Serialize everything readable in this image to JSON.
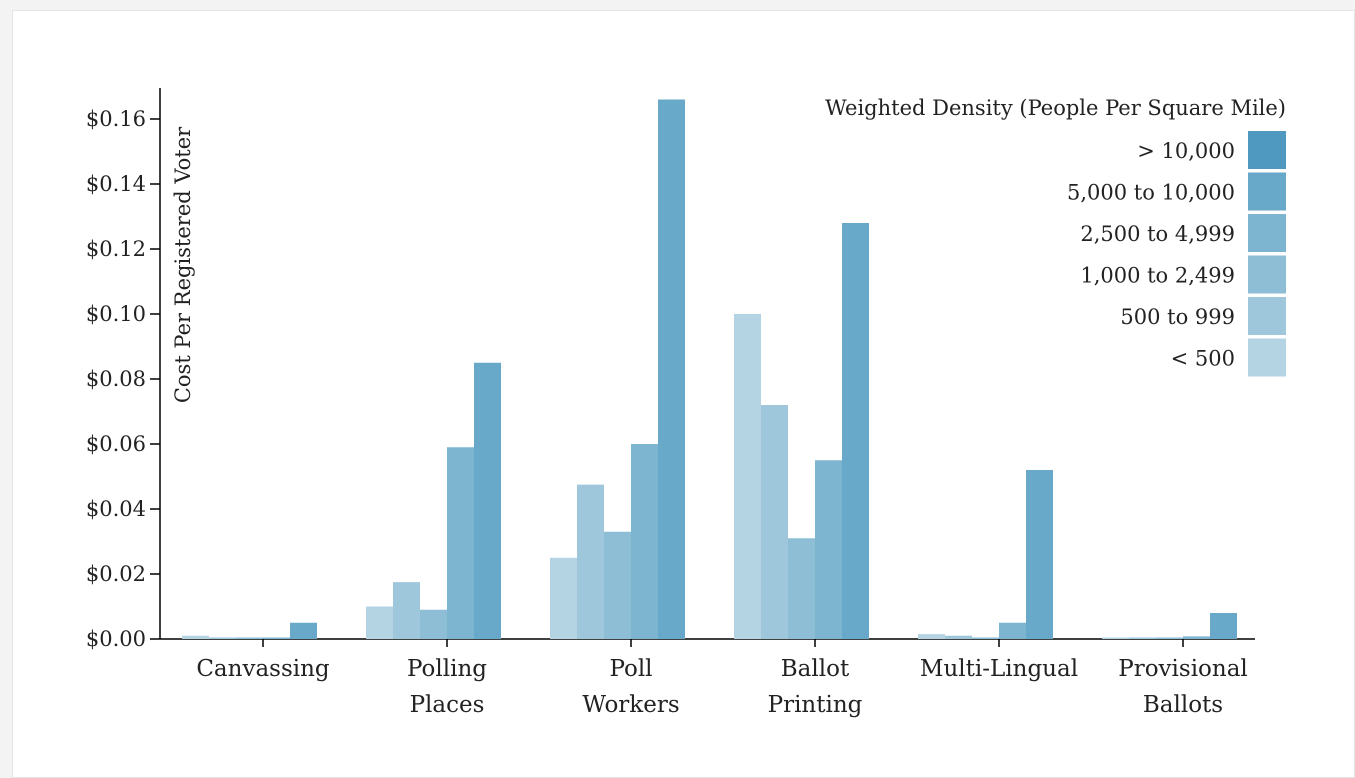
{
  "chart_data": {
    "type": "bar",
    "title": "",
    "xlabel": "",
    "ylabel": "Cost Per Registered Voter",
    "ylim": [
      0,
      0.165
    ],
    "yticks": [
      0,
      0.02,
      0.04,
      0.06,
      0.08,
      0.1,
      0.12,
      0.14,
      0.16
    ],
    "ytick_labels": [
      "$0.00",
      "$0.02",
      "$0.04",
      "$0.06",
      "$0.08",
      "$0.10",
      "$0.12",
      "$0.14",
      "$0.16"
    ],
    "grid": false,
    "categories": [
      [
        "Canvassing"
      ],
      [
        "Polling",
        "Places"
      ],
      [
        "Poll",
        "Workers"
      ],
      [
        "Ballot",
        "Printing"
      ],
      [
        "Multi-Lingual"
      ],
      [
        "Provisional",
        "Ballots"
      ]
    ],
    "series": [
      {
        "name": "< 500",
        "color": "#b4d3e3",
        "values": [
          0.001,
          0.01,
          0.025,
          0.1,
          0.0015,
          0.0003
        ]
      },
      {
        "name": "500 to 999",
        "color": "#9ec7dc",
        "values": [
          0.0002,
          0.0175,
          0.0475,
          0.072,
          0.001,
          0.0002
        ]
      },
      {
        "name": "1,000 to 2,499",
        "color": "#8ebed6",
        "values": [
          0.0003,
          0.009,
          0.033,
          0.031,
          0.0003,
          0.0001
        ]
      },
      {
        "name": "2,500 to 4,999",
        "color": "#7db5d0",
        "values": [
          0.0004,
          0.059,
          0.06,
          0.055,
          0.005,
          0.0008
        ]
      },
      {
        "name": "5,000 to 10,000",
        "color": "#68a9c9",
        "values": [
          0.005,
          0.085,
          0.166,
          0.128,
          0.052,
          0.008
        ]
      },
      {
        "name": "> 10,000",
        "color": "#4f98bf",
        "values": [
          0,
          0,
          0,
          0,
          0,
          0
        ]
      }
    ],
    "legend": {
      "title": "Weighted Density (People Per Square Mile)",
      "placement": "top-right",
      "order": [
        "> 10,000",
        "5,000 to 10,000",
        "2,500 to 4,999",
        "1,000 to 2,499",
        "500 to 999",
        "< 500"
      ]
    }
  }
}
